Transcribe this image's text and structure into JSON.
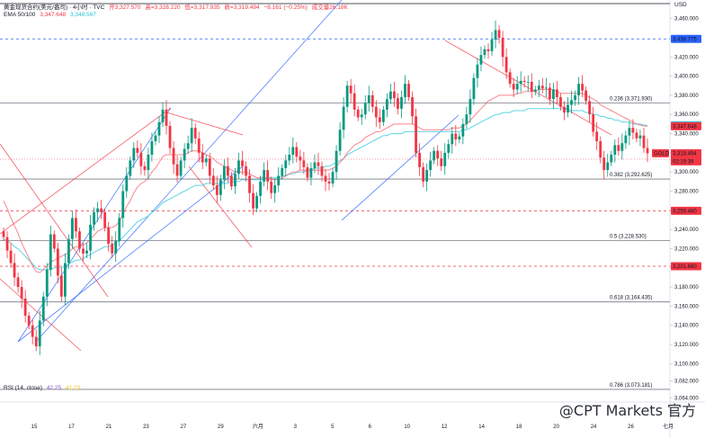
{
  "header": {
    "symbol": "黄金现货合约(美元/盎司) · 4小时 · TVC",
    "open": "开3,327.570",
    "high": "高=3,328.220",
    "low": "低=3,317.935",
    "close": "收=3,319.494",
    "change": "−8.161 (−0.25%)",
    "volume": "成交量26.18K",
    "ema_label": "EMA 50/100",
    "ema50_val": "3,347.648",
    "ema100_val": "3,348.567",
    "rsi_label": "RSI (14, close)",
    "rsi_val": "42.25",
    "rsi_ma_val": "41.23"
  },
  "currency": "USD",
  "watermark": "@CPT Markets 官方",
  "colors": {
    "up": "#089981",
    "down": "#f23645",
    "ema50": "#f7525f",
    "ema100": "#4dd0e1",
    "trend_blue": "#2962ff",
    "trend_red": "#f23645"
  },
  "fib_levels": [
    {
      "label": "0.236 (3,371.930)",
      "value": 3371.93
    },
    {
      "label": "0.382 (3,292.625)",
      "value": 3292.625
    },
    {
      "label": "0.5 (3,228.530)",
      "value": 3228.53
    },
    {
      "label": "0.618 (3,164.435)",
      "value": 3164.435
    },
    {
      "label": "0.786 (3,073.181)",
      "value": 3073.181
    }
  ],
  "price_tags": [
    {
      "text": "3,438.775",
      "value": 3438.775,
      "color": "#2962ff"
    },
    {
      "text": "3,348.567",
      "value": 3348.567,
      "color": "#26c6da"
    },
    {
      "text": "3,347.648",
      "value": 3347.648,
      "color": "#f23645"
    },
    {
      "text": "3,319.494",
      "value": 3319.494,
      "color": "#f23645",
      "symbol": "GOLD",
      "countdown": "02:19:39"
    },
    {
      "text": "3,259.480",
      "value": 3259.48,
      "color": "#f23645"
    },
    {
      "text": "3,201.680",
      "value": 3201.68,
      "color": "#f23645"
    }
  ],
  "chart_data": {
    "type": "candlestick",
    "y_ticks": [
      3460,
      3440,
      3420,
      3400,
      3380,
      3360,
      3340,
      3320,
      3300,
      3280,
      3260,
      3240,
      3220,
      3200,
      3180,
      3160,
      3140,
      3120,
      3100,
      3082,
      3064
    ],
    "y_tick_labels": [
      "3,460.000",
      "3,440.000",
      "3,420.000",
      "3,400.000",
      "3,380.000",
      "3,360.000",
      "3,340.000",
      "3,320.000",
      "3,300.000",
      "3,280.000",
      "",
      "3,240.000",
      "3,220.000",
      "",
      "3,180.000",
      "3,160.000",
      "3,140.000",
      "3,120.000",
      "3,100.000",
      "3,082.000",
      "3,064.000"
    ],
    "x_labels": [
      "15",
      "17",
      "21",
      "23",
      "27",
      "29",
      "六月",
      "3",
      "5",
      "6",
      "10",
      "12",
      "14",
      "18",
      "20",
      "24",
      "26",
      "七月"
    ],
    "ylim": [
      3060,
      3470
    ],
    "closes": [
      3232,
      3218,
      3205,
      3190,
      3180,
      3168,
      3150,
      3140,
      3128,
      3118,
      3145,
      3170,
      3198,
      3235,
      3220,
      3192,
      3170,
      3205,
      3230,
      3252,
      3238,
      3220,
      3215,
      3218,
      3245,
      3258,
      3262,
      3258,
      3242,
      3225,
      3215,
      3228,
      3252,
      3280,
      3296,
      3312,
      3325,
      3320,
      3306,
      3302,
      3318,
      3332,
      3338,
      3352,
      3365,
      3348,
      3325,
      3308,
      3296,
      3312,
      3324,
      3330,
      3346,
      3335,
      3320,
      3310,
      3314,
      3296,
      3286,
      3276,
      3292,
      3306,
      3296,
      3285,
      3298,
      3312,
      3306,
      3296,
      3278,
      3262,
      3275,
      3290,
      3302,
      3290,
      3278,
      3286,
      3296,
      3304,
      3312,
      3318,
      3326,
      3316,
      3312,
      3305,
      3294,
      3304,
      3310,
      3306,
      3296,
      3290,
      3288,
      3300,
      3322,
      3344,
      3368,
      3390,
      3382,
      3365,
      3357,
      3360,
      3372,
      3380,
      3368,
      3357,
      3352,
      3365,
      3376,
      3384,
      3377,
      3366,
      3378,
      3392,
      3378,
      3358,
      3320,
      3305,
      3290,
      3302,
      3312,
      3322,
      3314,
      3306,
      3320,
      3329,
      3340,
      3334,
      3337,
      3350,
      3360,
      3376,
      3398,
      3412,
      3422,
      3428,
      3426,
      3438,
      3448,
      3440,
      3420,
      3404,
      3392,
      3386,
      3392,
      3395,
      3394,
      3394,
      3384,
      3386,
      3390,
      3387,
      3388,
      3376,
      3386,
      3378,
      3368,
      3362,
      3370,
      3375,
      3380,
      3392,
      3385,
      3374,
      3360,
      3342,
      3332,
      3315,
      3302,
      3310,
      3318,
      3328,
      3322,
      3330,
      3338,
      3346,
      3341,
      3335,
      3338,
      3325,
      3319.494
    ],
    "ema50": [
      3270,
      3262,
      3252,
      3244,
      3236,
      3226,
      3218,
      3210,
      3202,
      3196,
      3195,
      3198,
      3202,
      3206,
      3208,
      3210,
      3212,
      3214,
      3216,
      3220,
      3222,
      3222,
      3224,
      3226,
      3230,
      3234,
      3238,
      3240,
      3242,
      3242,
      3242,
      3244,
      3248,
      3256,
      3264,
      3270,
      3278,
      3284,
      3288,
      3290,
      3294,
      3300,
      3304,
      3310,
      3316,
      3318,
      3318,
      3318,
      3318,
      3318,
      3318,
      3320,
      3322,
      3322,
      3322,
      3320,
      3318,
      3316,
      3314,
      3310,
      3308,
      3306,
      3304,
      3302,
      3300,
      3300,
      3300,
      3300,
      3298,
      3296,
      3294,
      3294,
      3294,
      3294,
      3292,
      3292,
      3292,
      3294,
      3296,
      3298,
      3300,
      3300,
      3302,
      3302,
      3302,
      3302,
      3302,
      3302,
      3302,
      3302,
      3302,
      3304,
      3306,
      3310,
      3314,
      3320,
      3324,
      3328,
      3330,
      3332,
      3336,
      3338,
      3340,
      3342,
      3342,
      3344,
      3346,
      3348,
      3350,
      3350,
      3350,
      3350,
      3350,
      3350,
      3348,
      3346,
      3344,
      3344,
      3344,
      3344,
      3344,
      3344,
      3344,
      3344,
      3346,
      3346,
      3346,
      3348,
      3350,
      3354,
      3358,
      3362,
      3366,
      3370,
      3374,
      3376,
      3378,
      3380,
      3380,
      3380,
      3380,
      3380,
      3382,
      3382,
      3384,
      3384,
      3384,
      3384,
      3386,
      3386,
      3386,
      3386,
      3386,
      3384,
      3382,
      3382,
      3382,
      3382,
      3382,
      3382,
      3382,
      3380,
      3378,
      3376,
      3374,
      3370,
      3368,
      3366,
      3364,
      3362,
      3360,
      3358,
      3356,
      3354,
      3352,
      3350,
      3349,
      3348,
      3347.648
    ],
    "ema100": [
      3230,
      3228,
      3226,
      3222,
      3220,
      3216,
      3212,
      3208,
      3204,
      3200,
      3198,
      3198,
      3198,
      3198,
      3200,
      3200,
      3200,
      3202,
      3204,
      3206,
      3208,
      3208,
      3210,
      3212,
      3214,
      3216,
      3218,
      3220,
      3222,
      3222,
      3224,
      3226,
      3228,
      3232,
      3236,
      3240,
      3244,
      3248,
      3250,
      3252,
      3254,
      3258,
      3260,
      3264,
      3268,
      3270,
      3272,
      3274,
      3276,
      3278,
      3280,
      3282,
      3284,
      3286,
      3286,
      3286,
      3288,
      3288,
      3288,
      3288,
      3288,
      3288,
      3288,
      3290,
      3290,
      3290,
      3292,
      3292,
      3292,
      3292,
      3292,
      3292,
      3292,
      3294,
      3294,
      3294,
      3294,
      3296,
      3296,
      3298,
      3298,
      3300,
      3300,
      3300,
      3302,
      3302,
      3304,
      3304,
      3304,
      3306,
      3306,
      3308,
      3310,
      3312,
      3314,
      3318,
      3320,
      3322,
      3324,
      3326,
      3328,
      3330,
      3332,
      3334,
      3336,
      3338,
      3338,
      3340,
      3340,
      3340,
      3340,
      3342,
      3342,
      3342,
      3342,
      3342,
      3342,
      3342,
      3342,
      3342,
      3342,
      3342,
      3342,
      3342,
      3342,
      3342,
      3342,
      3344,
      3344,
      3346,
      3348,
      3350,
      3352,
      3354,
      3356,
      3358,
      3360,
      3360,
      3362,
      3362,
      3362,
      3364,
      3364,
      3364,
      3364,
      3366,
      3366,
      3366,
      3366,
      3366,
      3366,
      3366,
      3366,
      3366,
      3366,
      3366,
      3366,
      3364,
      3364,
      3364,
      3364,
      3362,
      3362,
      3360,
      3360,
      3358,
      3358,
      3356,
      3356,
      3354,
      3354,
      3352,
      3352,
      3352,
      3350,
      3350,
      3350,
      3349,
      3348.567
    ]
  }
}
